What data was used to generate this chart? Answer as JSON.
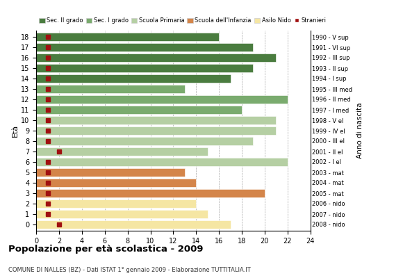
{
  "ages": [
    18,
    17,
    16,
    15,
    14,
    13,
    12,
    11,
    10,
    9,
    8,
    7,
    6,
    5,
    4,
    3,
    2,
    1,
    0
  ],
  "anni_nascita": [
    "1990 - V sup",
    "1991 - VI sup",
    "1992 - III sup",
    "1993 - II sup",
    "1994 - I sup",
    "1995 - III med",
    "1996 - II med",
    "1997 - I med",
    "1998 - V el",
    "1999 - IV el",
    "2000 - III el",
    "2001 - II el",
    "2002 - I el",
    "2003 - mat",
    "2004 - mat",
    "2005 - mat",
    "2006 - nido",
    "2007 - nido",
    "2008 - nido"
  ],
  "bar_values": [
    16,
    19,
    21,
    19,
    17,
    13,
    22,
    18,
    21,
    21,
    19,
    15,
    22,
    13,
    14,
    20,
    14,
    15,
    17
  ],
  "stranieri": [
    1,
    1,
    1,
    1,
    1,
    1,
    1,
    1,
    1,
    1,
    1,
    2,
    1,
    1,
    1,
    1,
    1,
    1,
    2
  ],
  "bar_colors": [
    "#4a7c3f",
    "#4a7c3f",
    "#4a7c3f",
    "#4a7c3f",
    "#4a7c3f",
    "#7aab6e",
    "#7aab6e",
    "#7aab6e",
    "#b5cfa3",
    "#b5cfa3",
    "#b5cfa3",
    "#b5cfa3",
    "#b5cfa3",
    "#d4854a",
    "#d4854a",
    "#d4854a",
    "#f5e6a3",
    "#f5e6a3",
    "#f5e6a3"
  ],
  "legend_labels": [
    "Sec. II grado",
    "Sec. I grado",
    "Scuola Primaria",
    "Scuola dell'Infanzia",
    "Asilo Nido",
    "Stranieri"
  ],
  "legend_colors": [
    "#4a7c3f",
    "#7aab6e",
    "#b5cfa3",
    "#d4854a",
    "#f5e6a3",
    "#a01010"
  ],
  "title": "Popolazione per età scolastica - 2009",
  "subtitle": "COMUNE DI NALLES (BZ) - Dati ISTAT 1° gennaio 2009 - Elaborazione TUTTITALIA.IT",
  "ylabel": "Età",
  "xlabel_right": "Anno di nascita",
  "xlim": [
    0,
    24
  ],
  "xticks": [
    0,
    2,
    4,
    6,
    8,
    10,
    12,
    14,
    16,
    18,
    20,
    22,
    24
  ],
  "background_color": "#ffffff",
  "stranieri_color": "#a01010",
  "stranieri_size": 4
}
